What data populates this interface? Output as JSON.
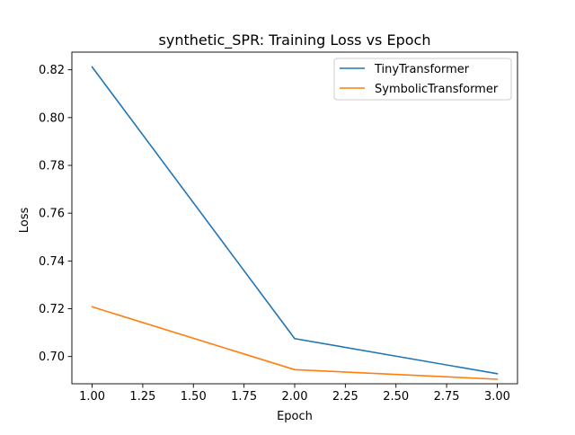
{
  "chart_data": {
    "type": "line",
    "title": "synthetic_SPR: Training Loss vs Epoch",
    "xlabel": "Epoch",
    "ylabel": "Loss",
    "x": [
      1,
      2,
      3
    ],
    "series": [
      {
        "name": "TinyTransformer",
        "color": "#1f77b4",
        "values": [
          0.8212,
          0.7075,
          0.6928
        ]
      },
      {
        "name": "SymbolicTransformer",
        "color": "#ff7f0e",
        "values": [
          0.7208,
          0.6945,
          0.6905
        ]
      }
    ],
    "xlim": [
      0.9,
      3.1
    ],
    "ylim": [
      0.6886,
      0.8274
    ],
    "xticks": [
      1.0,
      1.25,
      1.5,
      1.75,
      2.0,
      2.25,
      2.5,
      2.75,
      3.0
    ],
    "xtick_labels": [
      "1.00",
      "1.25",
      "1.50",
      "1.75",
      "2.00",
      "2.25",
      "2.50",
      "2.75",
      "3.00"
    ],
    "yticks": [
      0.7,
      0.72,
      0.74,
      0.76,
      0.78,
      0.8,
      0.82
    ],
    "ytick_labels": [
      "0.70",
      "0.72",
      "0.74",
      "0.76",
      "0.78",
      "0.80",
      "0.82"
    ],
    "grid": false,
    "legend_position": "top-right"
  }
}
